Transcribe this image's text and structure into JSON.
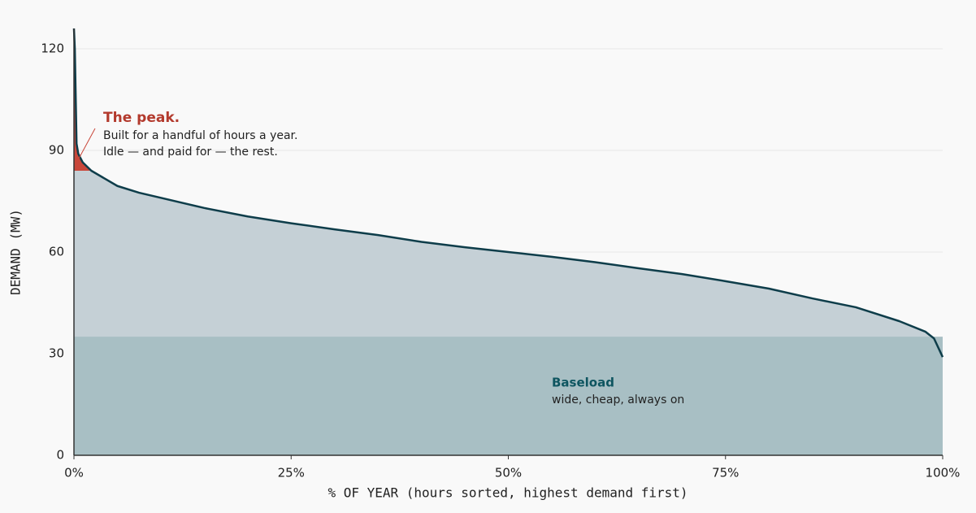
{
  "chart_data": {
    "type": "area",
    "x_label": "% OF YEAR (hours sorted, highest demand first)",
    "y_label": "DEMAND (MW)",
    "x": [
      0,
      0.1,
      0.3,
      0.5,
      1,
      2,
      3,
      5,
      7.5,
      10,
      15,
      20,
      25,
      30,
      35,
      40,
      45,
      50,
      55,
      60,
      65,
      70,
      75,
      80,
      85,
      90,
      95,
      98,
      99,
      100
    ],
    "values": [
      126,
      120,
      92,
      89,
      86.5,
      84,
      82.5,
      79.5,
      77.5,
      76,
      73,
      70.5,
      68.5,
      66.7,
      65,
      63,
      61.4,
      60,
      58.6,
      57,
      55.2,
      53.5,
      51.4,
      49.2,
      46.3,
      43.7,
      39.6,
      36.5,
      34.5,
      29
    ],
    "color": "#0e3d4a",
    "area_color": "#c5d0d6",
    "xlim": [
      0,
      100
    ],
    "ylim": [
      0,
      126
    ],
    "xticks": [
      {
        "value": 0,
        "label": "0%"
      },
      {
        "value": 25,
        "label": "25%"
      },
      {
        "value": 50,
        "label": "50%"
      },
      {
        "value": 75,
        "label": "75%"
      },
      {
        "value": 100,
        "label": "100%"
      }
    ],
    "yticks": [
      0,
      30,
      60,
      90,
      120
    ],
    "grid": true,
    "annotations": [
      {
        "title": "The peak.",
        "lines": [
          "Built for a handful of hours a year.",
          "Idle — and paid for — the rest."
        ],
        "threshold": 84,
        "color": "#c9473a"
      },
      {
        "title": "Baseload",
        "lines": [
          "wide, cheap, always on"
        ],
        "level": 35,
        "color": "#a8bfc4"
      }
    ]
  }
}
